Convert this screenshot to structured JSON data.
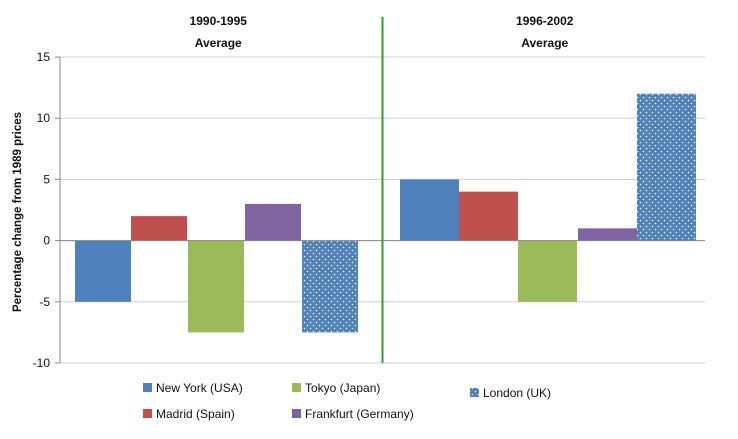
{
  "chart_data": {
    "type": "bar",
    "title": "",
    "xlabel": "",
    "ylabel": "Percentage change from 1989 prices",
    "ylim": [
      -10,
      15
    ],
    "yticks": [
      15,
      10,
      5,
      0,
      -5,
      -10
    ],
    "grid": true,
    "legend_position": "bottom",
    "groups": [
      {
        "label_line1": "1990-1995",
        "label_line2": "Average"
      },
      {
        "label_line1": "1996-2002",
        "label_line2": "Average"
      }
    ],
    "series": [
      {
        "name": "New York (USA)",
        "values": [
          -5,
          5
        ],
        "color": "#4F81BD",
        "pattern": "solid"
      },
      {
        "name": "Madrid (Spain)",
        "values": [
          2,
          4
        ],
        "color": "#C0504D",
        "pattern": "solid"
      },
      {
        "name": "Tokyo  (Japan)",
        "values": [
          -7.5,
          -5
        ],
        "color": "#9BBB59",
        "pattern": "solid"
      },
      {
        "name": "Frankfurt (Germany)",
        "values": [
          3,
          1
        ],
        "color": "#8064A2",
        "pattern": "solid"
      },
      {
        "name": "London (UK)",
        "values": [
          -7.5,
          12
        ],
        "color": "#4F81BD",
        "pattern": "dotted"
      }
    ],
    "divider_color": "#2AA02A"
  }
}
